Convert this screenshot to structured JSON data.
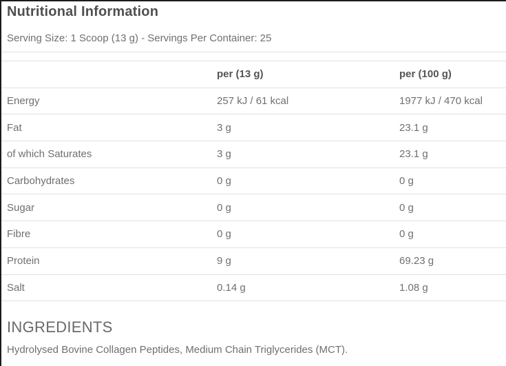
{
  "page": {
    "title": "Nutritional Information",
    "serving_info": "Serving Size: 1 Scoop (13 g) - Servings Per Container: 25"
  },
  "table": {
    "columns": [
      "",
      "per (13 g)",
      "per (100 g)"
    ],
    "rows": [
      {
        "label": "Energy",
        "per_serving": "257 kJ / 61 kcal",
        "per_100g": "1977 kJ / 470 kcal"
      },
      {
        "label": "Fat",
        "per_serving": "3 g",
        "per_100g": "23.1 g"
      },
      {
        "label": "of which Saturates",
        "per_serving": "3 g",
        "per_100g": "23.1 g"
      },
      {
        "label": "Carbohydrates",
        "per_serving": "0 g",
        "per_100g": "0 g"
      },
      {
        "label": "Sugar",
        "per_serving": "0 g",
        "per_100g": "0 g"
      },
      {
        "label": "Fibre",
        "per_serving": "0 g",
        "per_100g": "0 g"
      },
      {
        "label": "Protein",
        "per_serving": "9 g",
        "per_100g": "69.23 g"
      },
      {
        "label": "Salt",
        "per_serving": "0.14 g",
        "per_100g": "1.08 g"
      }
    ]
  },
  "ingredients": {
    "heading": "INGREDIENTS",
    "text": "Hydrolysed Bovine Collagen Peptides, Medium Chain Triglycerides (MCT)."
  },
  "colors": {
    "heading_text": "#4f4f51",
    "body_text": "#6e6f72",
    "table_header_text": "#545456",
    "divider": "#e1e1e1",
    "frame_border": "#1c1c1c",
    "background": "#ffffff"
  }
}
